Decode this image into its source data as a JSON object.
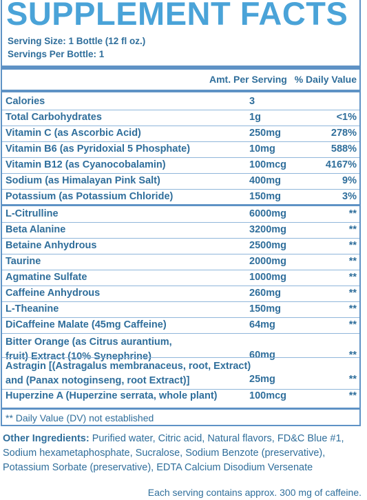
{
  "title": "SUPPLEMENT FACTS",
  "serving_size": "Serving Size: 1 Bottle  (12 fl oz.)",
  "servings_per": "Servings Per Bottle: 1",
  "header": {
    "amount": "Amt. Per Serving",
    "dv": "% Daily Value"
  },
  "rows": [
    {
      "name": "Calories",
      "amount": "3",
      "dv": ""
    },
    {
      "name": "Total Carbohydrates",
      "amount": "1g",
      "dv": "<1%"
    },
    {
      "name": "Vitamin C (as Ascorbic Acid)",
      "amount": "250mg",
      "dv": "278%"
    },
    {
      "name": "Vitamin B6 (as Pyridoxial 5 Phosphate)",
      "amount": "10mg",
      "dv": "588%"
    },
    {
      "name": "Vitamin B12 (as Cyanocobalamin)",
      "amount": "100mcg",
      "dv": "4167%"
    },
    {
      "name": "Sodium (as Himalayan Pink Salt)",
      "amount": "400mg",
      "dv": "9%"
    },
    {
      "name": "Potassium (as Potassium Chloride)",
      "amount": "150mg",
      "dv": "3%"
    },
    {
      "name": "L-Citrulline",
      "amount": "6000mg",
      "dv": "**"
    },
    {
      "name": "Beta Alanine",
      "amount": "3200mg",
      "dv": "**"
    },
    {
      "name": "Betaine Anhydrous",
      "amount": "2500mg",
      "dv": "**"
    },
    {
      "name": "Taurine",
      "amount": "2000mg",
      "dv": "**"
    },
    {
      "name": "Agmatine Sulfate",
      "amount": "1000mg",
      "dv": "**"
    },
    {
      "name": "Caffeine Anhydrous",
      "amount": "260mg",
      "dv": "**"
    },
    {
      "name": "L-Theanine",
      "amount": "150mg",
      "dv": "**"
    },
    {
      "name": "DiCaffeine Malate (45mg Caffeine)",
      "amount": "64mg",
      "dv": "**"
    },
    {
      "name_line1": "Bitter Orange (as Citrus aurantium,",
      "name_line2": "fruit) Extract (10% Synephrine)",
      "amount": "60mg",
      "dv": "**"
    },
    {
      "name_line1": "Astragin [(Astragalus membranaceus, root, Extract)",
      "name_line2": "and (Panax notoginseng, root Extract)]",
      "amount": "25mg",
      "dv": "**"
    },
    {
      "name": "Huperzine A (Huperzine serrata, whole plant)",
      "amount": "100mcg",
      "dv": "**"
    }
  ],
  "footnote": "** Daily Value (DV) not established",
  "other_label": "Other Ingredients:",
  "other_text": " Purified water, Citric acid, Natural flavors, FD&C Blue #1, Sodium hexametaphosphate, Sucralose, Sodium Benzote (preservative), Potassium Sorbate (preservative), EDTA Calcium Disodium Versenate",
  "approx": "Each serving contains approx. 300 mg of caffeine."
}
